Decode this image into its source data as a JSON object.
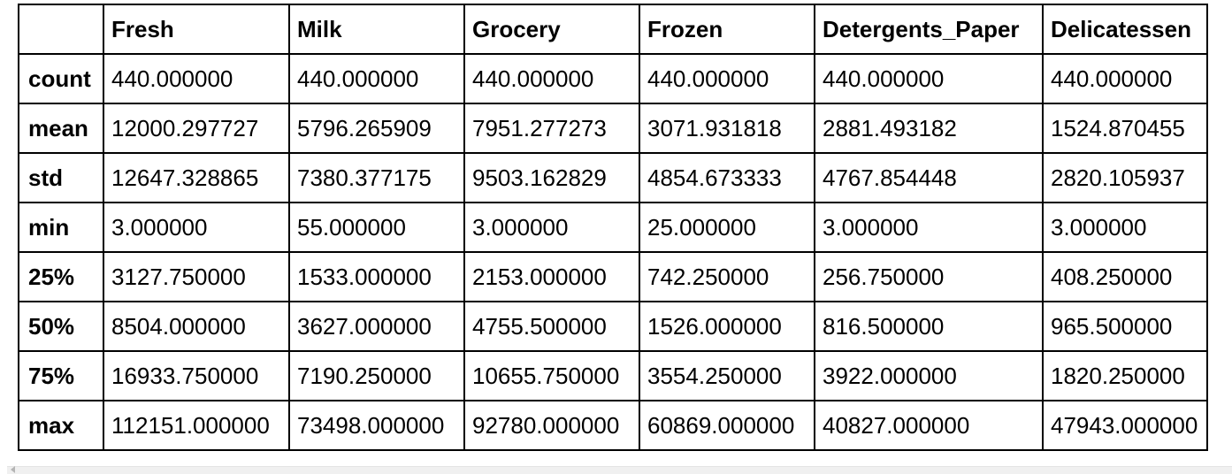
{
  "table": {
    "header": [
      "",
      "Fresh",
      "Milk",
      "Grocery",
      "Frozen",
      "Detergents_Paper",
      "Delicatessen"
    ],
    "rows": [
      {
        "label": "count",
        "values": [
          "440.000000",
          "440.000000",
          "440.000000",
          "440.000000",
          "440.000000",
          "440.000000"
        ]
      },
      {
        "label": "mean",
        "values": [
          "12000.297727",
          "5796.265909",
          "7951.277273",
          "3071.931818",
          "2881.493182",
          "1524.870455"
        ]
      },
      {
        "label": "std",
        "values": [
          "12647.328865",
          "7380.377175",
          "9503.162829",
          "4854.673333",
          "4767.854448",
          "2820.105937"
        ]
      },
      {
        "label": "min",
        "values": [
          "3.000000",
          "55.000000",
          "3.000000",
          "25.000000",
          "3.000000",
          "3.000000"
        ]
      },
      {
        "label": "25%",
        "values": [
          "3127.750000",
          "1533.000000",
          "2153.000000",
          "742.250000",
          "256.750000",
          "408.250000"
        ]
      },
      {
        "label": "50%",
        "values": [
          "8504.000000",
          "3627.000000",
          "4755.500000",
          "1526.000000",
          "816.500000",
          "965.500000"
        ]
      },
      {
        "label": "75%",
        "values": [
          "16933.750000",
          "7190.250000",
          "10655.750000",
          "3554.250000",
          "3922.000000",
          "1820.250000"
        ]
      },
      {
        "label": "max",
        "values": [
          "112151.000000",
          "73498.000000",
          "92780.000000",
          "60869.000000",
          "40827.000000",
          "47943.000000"
        ]
      }
    ]
  },
  "icons": {
    "scroll_left": "scroll-left-arrow-icon"
  }
}
